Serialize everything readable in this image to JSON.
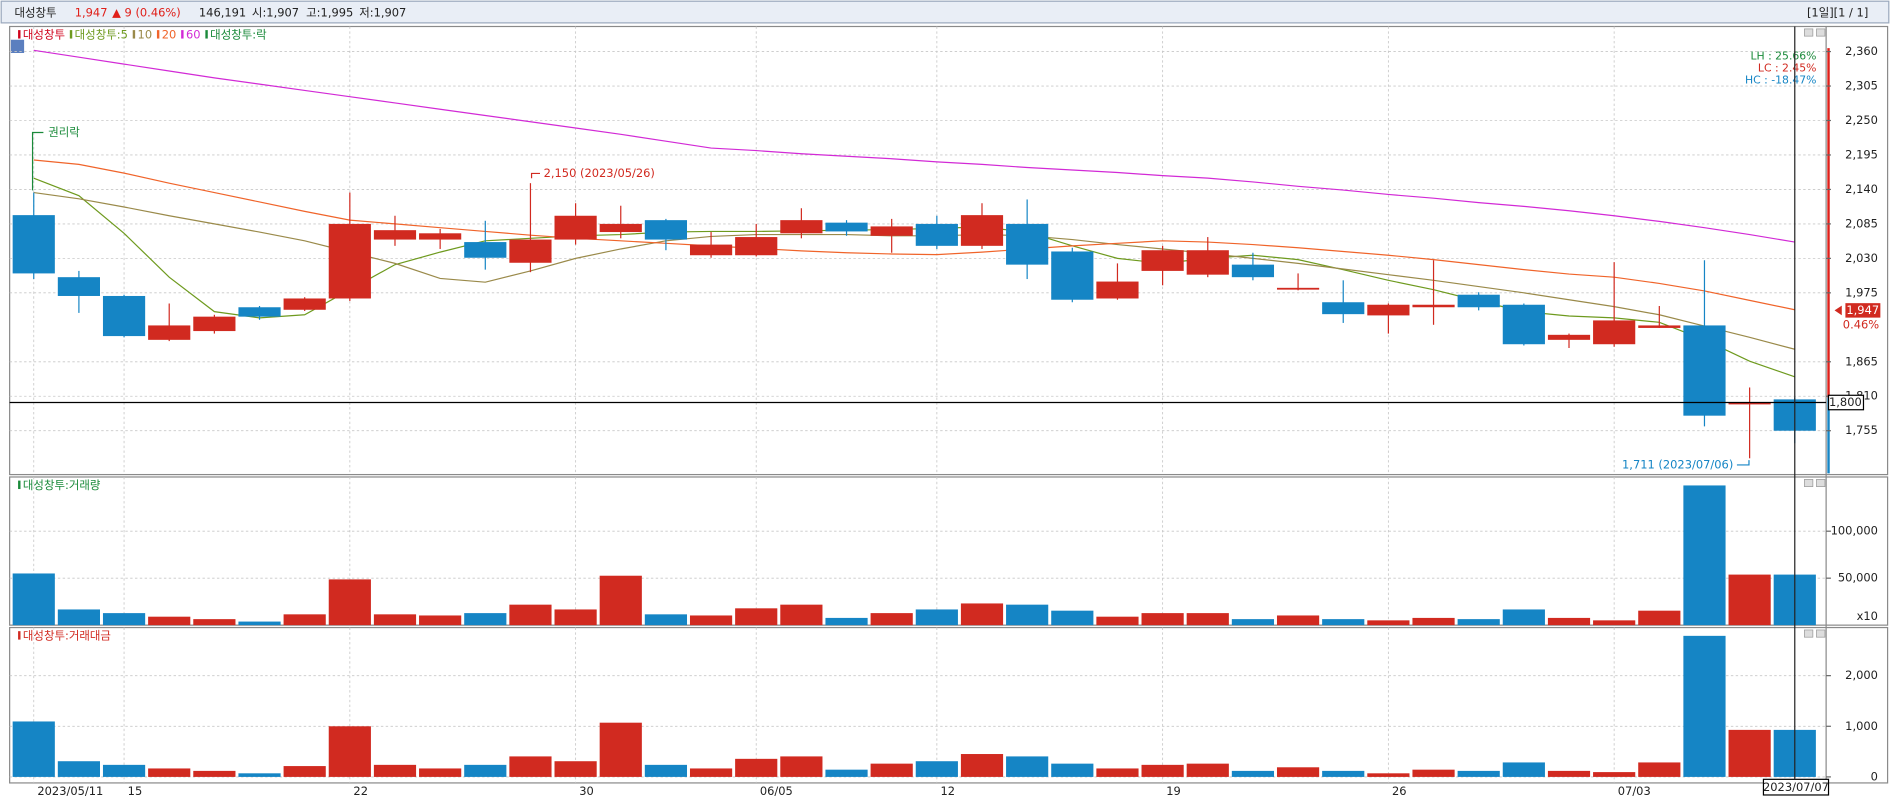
{
  "header": {
    "name": "대성창투",
    "price": "1,947",
    "change": "▲ 9 (0.46%)",
    "volume": "146,191",
    "open": "시:1,907",
    "high": "고:1,995",
    "low": "저:1,907",
    "nav": "[1일][1 / 1]"
  },
  "chart_data": [
    {
      "type": "candlestick",
      "legend_title": "대성창투",
      "legend_title_color": "#d0021b",
      "categories": [
        "2023/05/11",
        null,
        "15",
        null,
        null,
        null,
        null,
        "22",
        null,
        null,
        null,
        null,
        "30",
        null,
        null,
        null,
        "06/05",
        null,
        null,
        null,
        "12",
        null,
        null,
        null,
        null,
        "19",
        null,
        null,
        null,
        null,
        "26",
        null,
        null,
        null,
        null,
        "07/03",
        null,
        null,
        null,
        null
      ],
      "open": [
        2099,
        2000,
        1970,
        1900,
        1914,
        1952,
        1948,
        1966,
        2060,
        2060,
        2056,
        2023,
        2060,
        2072,
        2091,
        2035,
        2035,
        2070,
        2087,
        2066,
        2085,
        2050,
        2085,
        2041,
        1966,
        2010,
        2004,
        2020,
        1981,
        1960,
        1939,
        1952,
        1972,
        1956,
        1900,
        1893,
        1919,
        1923,
        1797,
        1805
      ],
      "high": [
        2135,
        2010,
        1972,
        1958,
        1940,
        1954,
        1968,
        2135,
        2098,
        2077,
        2090,
        2150,
        2118,
        2114,
        2093,
        2072,
        2085,
        2110,
        2091,
        2093,
        2098,
        2118,
        2124,
        2047,
        2022,
        2050,
        2064,
        2039,
        2006,
        1995,
        1958,
        2027,
        1976,
        1958,
        1910,
        2024,
        1954,
        2027,
        1824,
        1808
      ],
      "low": [
        1997,
        1943,
        1904,
        1898,
        1910,
        1932,
        1946,
        1962,
        2050,
        2045,
        2012,
        2008,
        2052,
        2062,
        2043,
        2031,
        2033,
        2062,
        2066,
        2039,
        2045,
        2045,
        1997,
        1960,
        1964,
        1987,
        2000,
        1995,
        1979,
        1927,
        1910,
        1924,
        1947,
        1891,
        1887,
        1889,
        1919,
        1762,
        1711,
        1735
      ],
      "close": [
        2006,
        1970,
        1906,
        1923,
        1937,
        1937,
        1966,
        2085,
        2075,
        2070,
        2031,
        2060,
        2098,
        2085,
        2060,
        2052,
        2064,
        2091,
        2073,
        2081,
        2050,
        2099,
        2020,
        1964,
        1993,
        2043,
        2043,
        2000,
        1983,
        1941,
        1956,
        1956,
        1952,
        1893,
        1908,
        1931,
        1923,
        1779,
        1800,
        1755
      ],
      "up_color": "#d12a20",
      "down_color": "#1585c5",
      "moving_averages": [
        {
          "name": "대성창투:5",
          "color": "#6e9a1e",
          "values": [
            2158,
            2130,
            2070,
            2000,
            1945,
            1935,
            1940,
            1980,
            2020,
            2040,
            2058,
            2062,
            2066,
            2068,
            2072,
            2073,
            2073,
            2074,
            2075,
            2076,
            2078,
            2080,
            2072,
            2050,
            2030,
            2022,
            2030,
            2035,
            2028,
            2012,
            1995,
            1980,
            1962,
            1945,
            1938,
            1935,
            1928,
            1900,
            1866,
            1841
          ]
        },
        {
          "name": "10",
          "color": "#9a8a4a",
          "values": [
            2135,
            2125,
            2112,
            2098,
            2085,
            2072,
            2058,
            2040,
            2022,
            1998,
            1992,
            2010,
            2030,
            2045,
            2058,
            2065,
            2068,
            2068,
            2068,
            2066,
            2066,
            2068,
            2066,
            2060,
            2052,
            2045,
            2038,
            2030,
            2022,
            2013,
            2004,
            1995,
            1985,
            1975,
            1964,
            1953,
            1940,
            1922,
            1904,
            1885
          ]
        },
        {
          "name": "20",
          "color": "#f0642a",
          "values": [
            2187,
            2180,
            2166,
            2150,
            2135,
            2120,
            2105,
            2091,
            2085,
            2079,
            2073,
            2067,
            2062,
            2058,
            2054,
            2050,
            2046,
            2042,
            2039,
            2037,
            2036,
            2040,
            2045,
            2050,
            2054,
            2058,
            2056,
            2052,
            2047,
            2041,
            2035,
            2028,
            2020,
            2012,
            2005,
            2000,
            1990,
            1978,
            1963,
            1948
          ]
        },
        {
          "name": "60",
          "color": "#d22ad6",
          "values": [
            2362,
            2351,
            2340,
            2329,
            2318,
            2308,
            2298,
            2288,
            2278,
            2268,
            2258,
            2248,
            2238,
            2228,
            2217,
            2206,
            2202,
            2197,
            2193,
            2189,
            2184,
            2180,
            2175,
            2171,
            2167,
            2162,
            2158,
            2152,
            2145,
            2139,
            2132,
            2126,
            2119,
            2113,
            2106,
            2098,
            2089,
            2079,
            2068,
            2056
          ]
        }
      ],
      "legend_extra": "대성창투:락",
      "legend_extra_color": "#1a8a3a",
      "ylim": [
        1685,
        2400
      ],
      "yticks": [
        {
          "value": 2360,
          "label": "2,360"
        },
        {
          "value": 2305,
          "label": "2,305"
        },
        {
          "value": 2250,
          "label": "2,250"
        },
        {
          "value": 2195,
          "label": "2,195"
        },
        {
          "value": 2140,
          "label": "2,140"
        },
        {
          "value": 2085,
          "label": "2,085"
        },
        {
          "value": 2030,
          "label": "2,030"
        },
        {
          "value": 1975,
          "label": "1,975"
        },
        {
          "value": 1865,
          "label": "1,865"
        },
        {
          "value": 1810,
          "label": "1,810"
        },
        {
          "value": 1755,
          "label": "1,755"
        }
      ],
      "grid": true,
      "annotations": [
        {
          "text": "권리락",
          "color": "#1a8a3a"
        },
        {
          "text": "2,150 (2023/05/26)",
          "color": "#d12a20"
        },
        {
          "text": "1,711 (2023/07/06)",
          "color": "#1585c5"
        }
      ],
      "stats": [
        {
          "text": "LH : 25.66%",
          "color": "#1a8a3a"
        },
        {
          "text": "LC : 2.45%",
          "color": "#d12a20"
        },
        {
          "text": "HC : -18.47%",
          "color": "#1585c5"
        }
      ],
      "hline": {
        "value": 1800,
        "label": "1,800"
      },
      "last_price": {
        "value": 1947,
        "label": "1,947"
      },
      "last_change": "0.46%"
    },
    {
      "type": "bar",
      "title": "대성창투:거래량",
      "title_color": "#1a8a3a",
      "values": [
        55000,
        16700,
        12800,
        9000,
        6400,
        3800,
        11500,
        48700,
        11500,
        10300,
        12800,
        21800,
        16700,
        52600,
        11500,
        10300,
        17900,
        21800,
        7700,
        12800,
        16700,
        23100,
        21800,
        15400,
        9000,
        12800,
        12800,
        6400,
        10300,
        6400,
        5100,
        7700,
        6400,
        16700,
        7700,
        5100,
        15400,
        148700,
        53800,
        53800
      ],
      "ylim": [
        0,
        157700
      ],
      "yticks": [
        {
          "value": 100000,
          "label": "100,000"
        },
        {
          "value": 50000,
          "label": "50,000"
        }
      ],
      "unit_label": "x10",
      "grid": true
    },
    {
      "type": "bar",
      "title": "대성창투:거래대금",
      "title_color": "#d12a20",
      "values": [
        1095,
        310,
        238,
        167,
        119,
        71,
        214,
        1000,
        238,
        167,
        238,
        405,
        310,
        1071,
        238,
        167,
        357,
        405,
        143,
        262,
        310,
        452,
        405,
        262,
        167,
        238,
        262,
        119,
        190,
        119,
        71,
        143,
        119,
        286,
        119,
        95,
        286,
        2786,
        929,
        929
      ],
      "ylim": [
        0,
        2950
      ],
      "yticks": [
        {
          "value": 2000,
          "label": "2,000"
        },
        {
          "value": 1000,
          "label": "1,000"
        },
        0
      ],
      "grid": true,
      "cursor_date": "2023/07/07"
    }
  ]
}
